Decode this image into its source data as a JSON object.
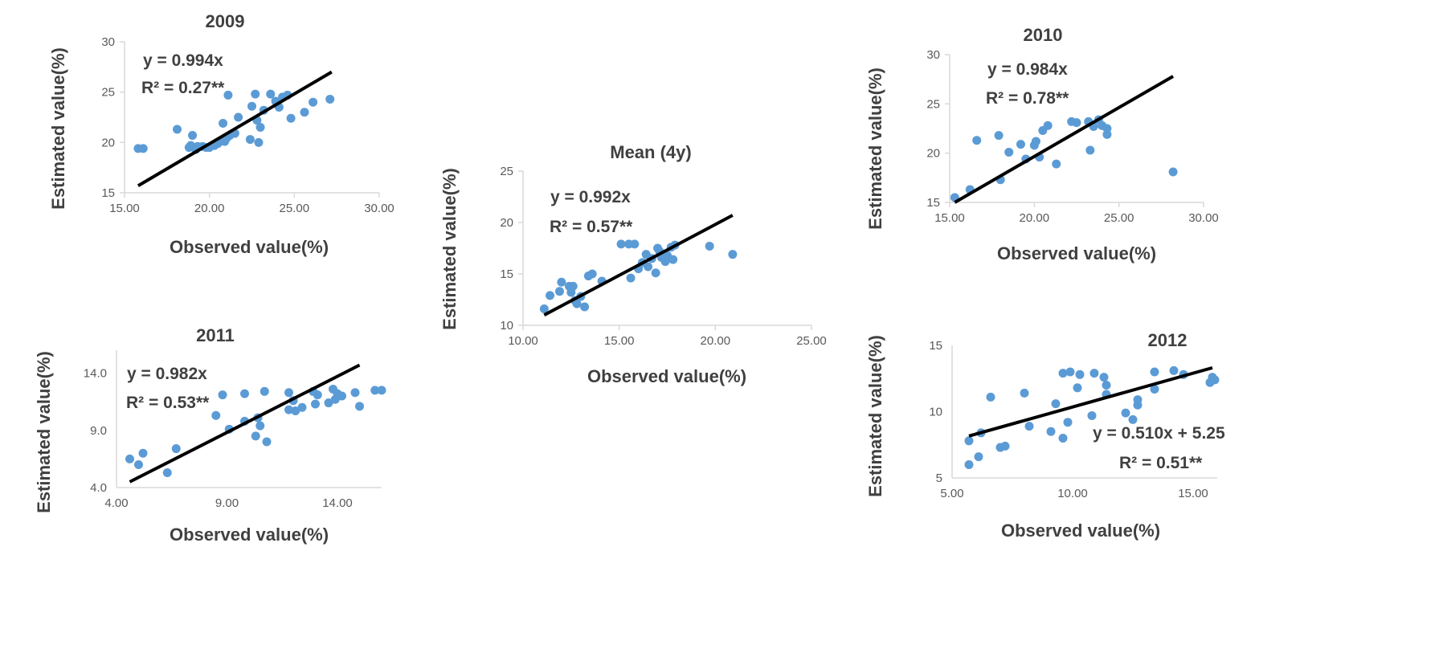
{
  "colors": {
    "points": "#5b9bd5",
    "trendline": "#000000",
    "axes": "#d9d9d9",
    "text": "#404040"
  },
  "chart_data": [
    {
      "id": "2009",
      "type": "scatter",
      "title": "2009",
      "xlabel": "Observed value(%)",
      "ylabel": "Estimated value(%)",
      "xlim": [
        15,
        30
      ],
      "ylim": [
        15,
        30
      ],
      "xticks": [
        15,
        20,
        25,
        30
      ],
      "xtick_labels": [
        "15.00",
        "20.00",
        "25.00",
        "30.00"
      ],
      "yticks": [
        15,
        20,
        25,
        30
      ],
      "ytick_labels": [
        "15",
        "20",
        "25",
        "30"
      ],
      "equation": "y = 0.994x",
      "r2": "R² = 0.27**",
      "trendline": {
        "x": [
          15.8,
          27.2
        ],
        "y": [
          15.7,
          27.0
        ]
      },
      "points": [
        [
          15.8,
          19.4
        ],
        [
          16.1,
          19.4
        ],
        [
          18.1,
          21.3
        ],
        [
          18.8,
          19.5
        ],
        [
          18.9,
          19.7
        ],
        [
          19.0,
          20.7
        ],
        [
          19.2,
          19.3
        ],
        [
          19.3,
          19.6
        ],
        [
          19.6,
          19.6
        ],
        [
          19.8,
          19.5
        ],
        [
          20.0,
          19.5
        ],
        [
          20.3,
          19.7
        ],
        [
          20.5,
          19.9
        ],
        [
          20.6,
          20.1
        ],
        [
          20.8,
          21.9
        ],
        [
          20.9,
          20.1
        ],
        [
          21.0,
          20.4
        ],
        [
          21.1,
          24.7
        ],
        [
          21.2,
          20.7
        ],
        [
          21.5,
          20.9
        ],
        [
          21.7,
          22.5
        ],
        [
          22.4,
          20.3
        ],
        [
          22.5,
          23.6
        ],
        [
          22.7,
          24.8
        ],
        [
          22.8,
          22.2
        ],
        [
          22.9,
          20.0
        ],
        [
          23.0,
          21.5
        ],
        [
          23.2,
          23.2
        ],
        [
          23.6,
          24.8
        ],
        [
          23.9,
          24.1
        ],
        [
          24.1,
          23.5
        ],
        [
          24.3,
          24.5
        ],
        [
          24.6,
          24.7
        ],
        [
          24.8,
          22.4
        ],
        [
          25.6,
          23.0
        ],
        [
          26.1,
          24.0
        ],
        [
          27.1,
          24.3
        ]
      ]
    },
    {
      "id": "mean",
      "type": "scatter",
      "title": "Mean (4y)",
      "xlabel": "Observed value(%)",
      "ylabel": "Estimated value(%)",
      "xlim": [
        10,
        25
      ],
      "ylim": [
        10,
        25
      ],
      "xticks": [
        10,
        15,
        20,
        25
      ],
      "xtick_labels": [
        "10.00",
        "15.00",
        "20.00",
        "25.00"
      ],
      "yticks": [
        10,
        15,
        20,
        25
      ],
      "ytick_labels": [
        "10",
        "15",
        "20",
        "25"
      ],
      "equation": "y = 0.992x",
      "r2": "R² = 0.57**",
      "trendline": {
        "x": [
          11.1,
          20.9
        ],
        "y": [
          11.0,
          20.7
        ]
      },
      "points": [
        [
          11.1,
          11.6
        ],
        [
          11.4,
          12.9
        ],
        [
          11.9,
          13.3
        ],
        [
          12.0,
          14.2
        ],
        [
          12.4,
          13.8
        ],
        [
          12.5,
          13.2
        ],
        [
          12.6,
          13.8
        ],
        [
          12.7,
          12.4
        ],
        [
          12.8,
          12.1
        ],
        [
          13.0,
          12.8
        ],
        [
          13.2,
          11.8
        ],
        [
          13.4,
          14.8
        ],
        [
          13.6,
          15.0
        ],
        [
          14.1,
          14.3
        ],
        [
          15.1,
          17.9
        ],
        [
          15.5,
          17.9
        ],
        [
          15.6,
          14.6
        ],
        [
          15.8,
          17.9
        ],
        [
          16.0,
          15.5
        ],
        [
          16.2,
          16.1
        ],
        [
          16.4,
          16.9
        ],
        [
          16.5,
          15.7
        ],
        [
          16.7,
          16.5
        ],
        [
          16.9,
          15.1
        ],
        [
          17.0,
          17.5
        ],
        [
          17.1,
          17.2
        ],
        [
          17.2,
          16.6
        ],
        [
          17.4,
          16.2
        ],
        [
          17.5,
          16.8
        ],
        [
          17.7,
          17.6
        ],
        [
          17.8,
          16.4
        ],
        [
          17.9,
          17.8
        ],
        [
          19.7,
          17.7
        ],
        [
          20.9,
          16.9
        ]
      ]
    },
    {
      "id": "2010",
      "type": "scatter",
      "title": "2010",
      "xlabel": "Observed value(%)",
      "ylabel": "Estimated value(%)",
      "xlim": [
        15,
        30
      ],
      "ylim": [
        15,
        30
      ],
      "xticks": [
        15,
        20,
        25,
        30
      ],
      "xtick_labels": [
        "15.00",
        "20.00",
        "25.00",
        "30.00"
      ],
      "yticks": [
        15,
        20,
        25,
        30
      ],
      "ytick_labels": [
        "15",
        "20",
        "25",
        "30"
      ],
      "equation": "y = 0.984x",
      "r2": "R² = 0.78**",
      "trendline": {
        "x": [
          15.3,
          28.2
        ],
        "y": [
          15.0,
          27.8
        ]
      },
      "points": [
        [
          15.3,
          15.5
        ],
        [
          16.2,
          16.3
        ],
        [
          16.6,
          21.3
        ],
        [
          17.9,
          21.8
        ],
        [
          18.0,
          17.3
        ],
        [
          18.5,
          20.1
        ],
        [
          19.2,
          20.9
        ],
        [
          19.5,
          19.4
        ],
        [
          20.0,
          20.8
        ],
        [
          20.1,
          21.2
        ],
        [
          20.3,
          19.6
        ],
        [
          20.5,
          22.3
        ],
        [
          20.8,
          22.8
        ],
        [
          21.3,
          18.9
        ],
        [
          22.2,
          23.2
        ],
        [
          22.5,
          23.1
        ],
        [
          23.2,
          23.2
        ],
        [
          23.3,
          20.3
        ],
        [
          23.5,
          22.7
        ],
        [
          23.8,
          23.4
        ],
        [
          24.0,
          22.8
        ],
        [
          24.3,
          21.9
        ],
        [
          24.3,
          22.5
        ],
        [
          28.2,
          18.1
        ]
      ]
    },
    {
      "id": "2011",
      "type": "scatter",
      "title": "2011",
      "xlabel": "Observed value(%)",
      "ylabel": "Estimated value(%)",
      "xlim": [
        4,
        16
      ],
      "ylim": [
        4,
        16
      ],
      "xticks": [
        4,
        9,
        14
      ],
      "xtick_labels": [
        "4.00",
        "9.00",
        "14.00"
      ],
      "yticks": [
        4,
        9,
        14
      ],
      "ytick_labels": [
        "4.0",
        "9.0",
        "14.0"
      ],
      "equation": "y = 0.982x",
      "r2": "R² = 0.53**",
      "trendline": {
        "x": [
          4.6,
          15.0
        ],
        "y": [
          4.5,
          14.7
        ]
      },
      "points": [
        [
          4.6,
          6.5
        ],
        [
          5.0,
          6.0
        ],
        [
          5.2,
          7.0
        ],
        [
          6.3,
          5.3
        ],
        [
          6.7,
          7.4
        ],
        [
          8.5,
          10.3
        ],
        [
          8.8,
          12.1
        ],
        [
          9.1,
          9.1
        ],
        [
          9.8,
          9.8
        ],
        [
          9.8,
          12.2
        ],
        [
          10.3,
          8.5
        ],
        [
          10.4,
          10.1
        ],
        [
          10.5,
          9.4
        ],
        [
          10.7,
          12.4
        ],
        [
          10.8,
          8.0
        ],
        [
          11.8,
          12.3
        ],
        [
          11.8,
          10.8
        ],
        [
          12.0,
          11.6
        ],
        [
          12.1,
          10.7
        ],
        [
          12.4,
          11.0
        ],
        [
          12.9,
          12.4
        ],
        [
          13.0,
          11.3
        ],
        [
          13.1,
          12.1
        ],
        [
          13.6,
          11.4
        ],
        [
          13.8,
          12.6
        ],
        [
          13.9,
          11.7
        ],
        [
          14.0,
          12.2
        ],
        [
          14.2,
          12.0
        ],
        [
          14.8,
          12.3
        ],
        [
          15.0,
          11.1
        ],
        [
          15.7,
          12.5
        ],
        [
          16.0,
          12.5
        ]
      ]
    },
    {
      "id": "2012",
      "type": "scatter",
      "title": "2012",
      "xlabel": "Observed value(%)",
      "ylabel": "Estimated value(%)",
      "xlim": [
        5,
        16
      ],
      "ylim": [
        5,
        15
      ],
      "xticks": [
        5,
        10,
        15
      ],
      "xtick_labels": [
        "5.00",
        "10.00",
        "15.00"
      ],
      "yticks": [
        5,
        10,
        15
      ],
      "ytick_labels": [
        "5",
        "10",
        "15"
      ],
      "equation": "y = 0.510x + 5.25",
      "r2": "R² = 0.51**",
      "trendline": {
        "x": [
          5.7,
          15.8
        ],
        "y": [
          8.16,
          13.31
        ]
      },
      "points": [
        [
          5.7,
          6.0
        ],
        [
          5.7,
          7.8
        ],
        [
          6.1,
          6.6
        ],
        [
          6.2,
          8.4
        ],
        [
          6.6,
          11.1
        ],
        [
          7.0,
          7.3
        ],
        [
          7.2,
          7.4
        ],
        [
          8.0,
          11.4
        ],
        [
          8.2,
          8.9
        ],
        [
          9.1,
          8.5
        ],
        [
          9.3,
          10.6
        ],
        [
          9.6,
          8.0
        ],
        [
          9.6,
          12.9
        ],
        [
          9.8,
          9.2
        ],
        [
          9.9,
          13.0
        ],
        [
          10.2,
          11.8
        ],
        [
          10.3,
          12.8
        ],
        [
          10.8,
          9.7
        ],
        [
          10.9,
          12.9
        ],
        [
          11.3,
          12.6
        ],
        [
          11.4,
          12.0
        ],
        [
          11.4,
          11.3
        ],
        [
          12.2,
          9.9
        ],
        [
          12.5,
          9.4
        ],
        [
          12.7,
          10.5
        ],
        [
          12.7,
          10.9
        ],
        [
          13.4,
          13.0
        ],
        [
          13.4,
          11.7
        ],
        [
          14.2,
          13.1
        ],
        [
          14.6,
          12.8
        ],
        [
          15.7,
          12.2
        ],
        [
          15.8,
          12.6
        ],
        [
          15.9,
          12.4
        ]
      ]
    }
  ]
}
